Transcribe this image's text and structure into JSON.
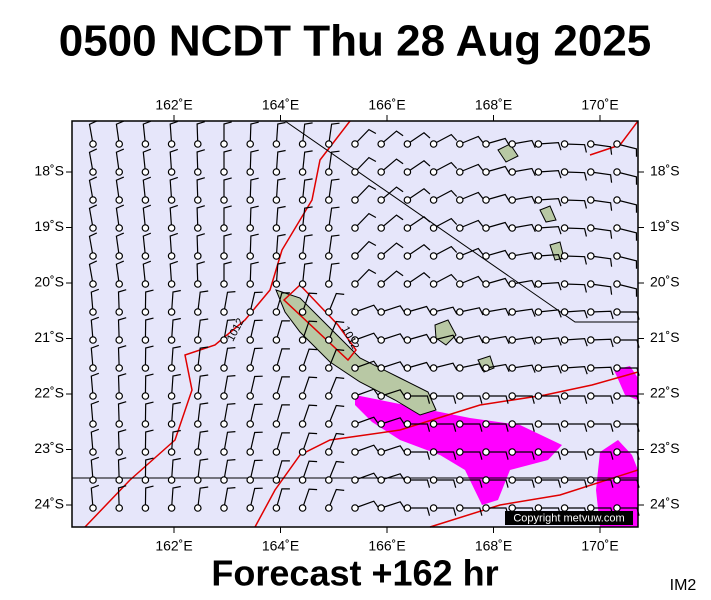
{
  "title": "0500 NCDT Thu 28 Aug 2025",
  "map": {
    "lon_labels": [
      "162˚E",
      "164˚E",
      "166˚E",
      "168˚E",
      "170˚E"
    ],
    "lat_labels": [
      "18˚S",
      "19˚S",
      "20˚S",
      "21˚S",
      "22˚S",
      "23˚S",
      "24˚S"
    ],
    "isobar_labels": [
      "1012",
      "1012"
    ],
    "copyright": "Copyright metvuw.com"
  },
  "footer": "Forecast +162 hr",
  "image_id": "IM2"
}
